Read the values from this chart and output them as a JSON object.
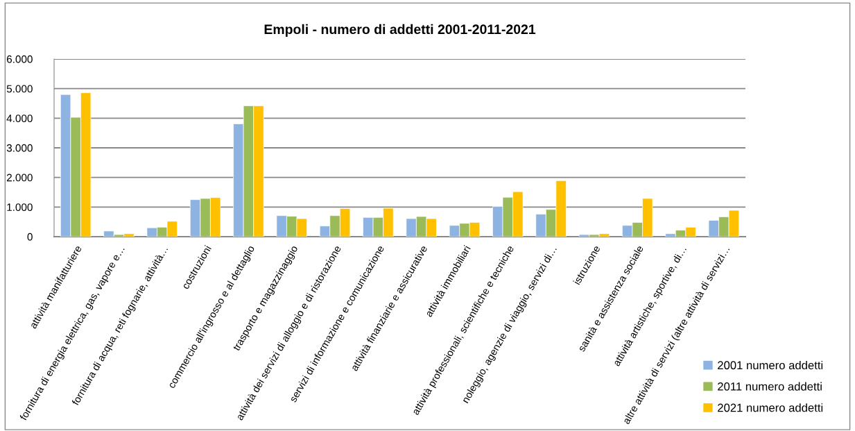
{
  "chart_data": {
    "type": "bar",
    "title": "Empoli - numero di addetti 2001-2011-2021",
    "categories": [
      "attività manifatturiere",
      "fornitura di energia elettrica, gas, vapore e…",
      "fornitura di acqua, reti fognarie, attività…",
      "costruzioni",
      "commercio all'ingrosso e al dettaglio",
      "trasporto e magazzinaggio",
      "attività dei servizi di alloggio e di ristorazione",
      "servizi di informazione e comunicazione",
      "attività finanziarie e assicurative",
      "attività immobiliari",
      "attività professionali, scientifiche e tecniche",
      "noleggio, agenzie di viaggio, servizi di…",
      "istruzione",
      "sanità e assistenza sociale",
      "attività artistiche, sportive, di…",
      "altre attività di servizi (altre attività di servizi…"
    ],
    "series": [
      {
        "name": "2001 numero addetti",
        "color": "#8db3e2",
        "values": [
          4800,
          190,
          300,
          1250,
          3810,
          710,
          360,
          650,
          610,
          380,
          1020,
          760,
          70,
          380,
          100,
          550
        ]
      },
      {
        "name": "2011 numero addetti",
        "color": "#9bbb59",
        "values": [
          4030,
          70,
          320,
          1290,
          4420,
          690,
          710,
          650,
          680,
          450,
          1330,
          920,
          70,
          480,
          220,
          670
        ]
      },
      {
        "name": "2021 numero addetti",
        "color": "#ffc000",
        "values": [
          4860,
          100,
          520,
          1320,
          4420,
          610,
          950,
          960,
          610,
          480,
          1520,
          1890,
          100,
          1290,
          320,
          890
        ]
      }
    ],
    "ylim": [
      0,
      6000
    ],
    "yticks": [
      0,
      {
        "value": 1000,
        "label": "1.000"
      },
      {
        "value": 2000,
        "label": "2.000"
      },
      {
        "value": 3000,
        "label": "3.000"
      },
      {
        "value": 4000,
        "label": "4.000"
      },
      {
        "value": 5000,
        "label": "5.000"
      },
      {
        "value": 6000,
        "label": "6.000"
      }
    ],
    "grid": "y",
    "legend": "bottom right"
  }
}
